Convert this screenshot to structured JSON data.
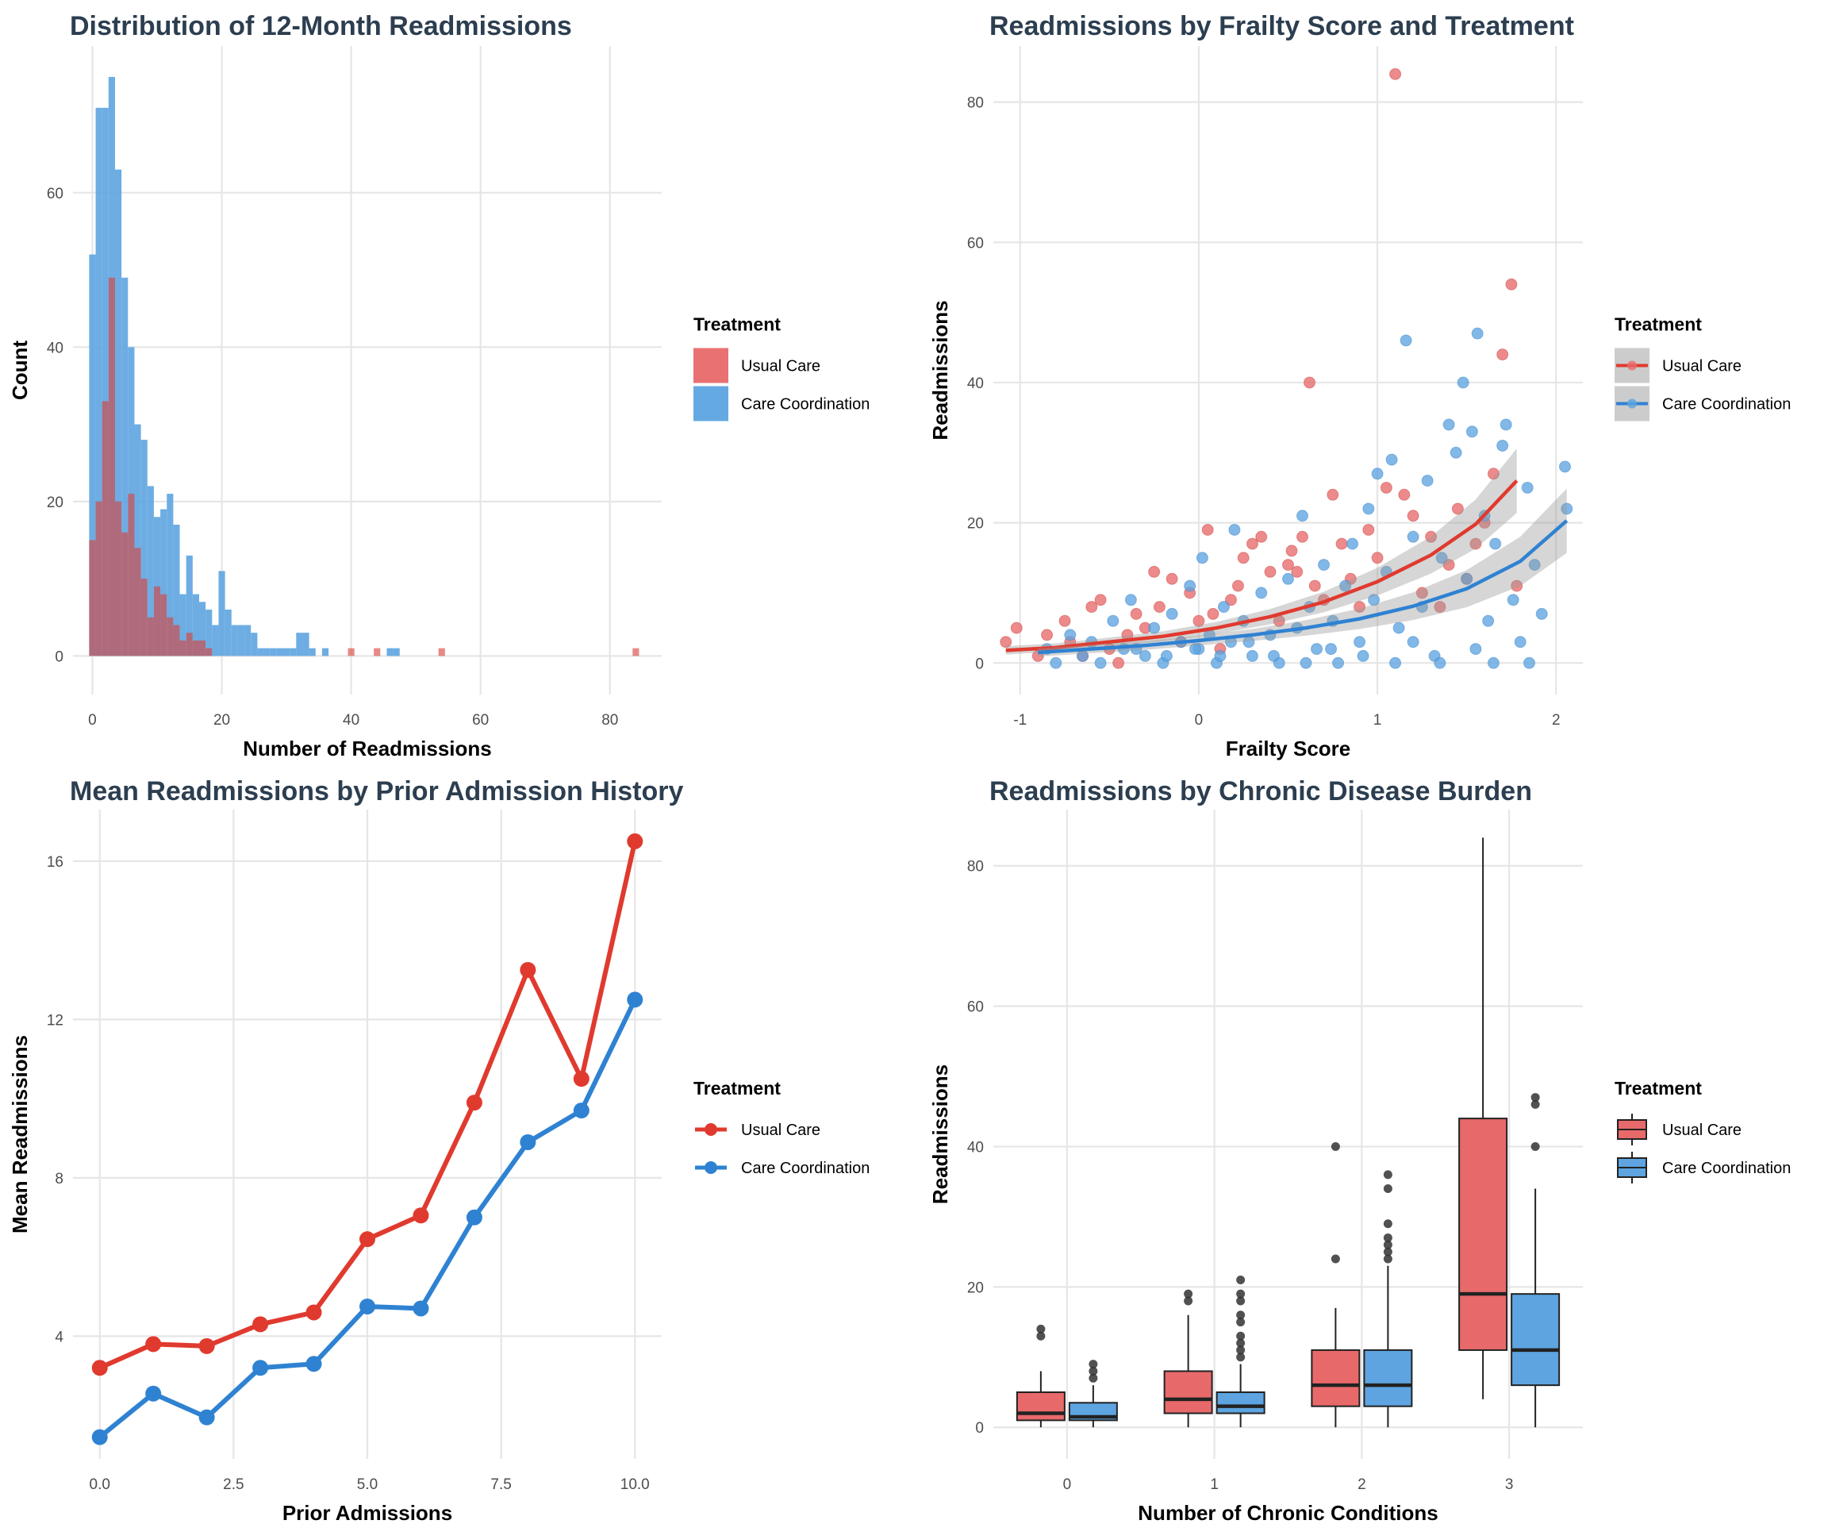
{
  "colors": {
    "usual": "#e03a2f",
    "usual_fill": "#e8696a",
    "coord": "#2f82d2",
    "coord_fill": "#5da4e0"
  },
  "chart_data": [
    {
      "type": "histogram",
      "title": "Distribution of 12-Month Readmissions",
      "xlabel": "Number of Readmissions",
      "ylabel": "Count",
      "xlim": [
        -3,
        88
      ],
      "ylim": [
        -5,
        79
      ],
      "xticks": [
        0,
        20,
        40,
        60,
        80
      ],
      "yticks": [
        0,
        20,
        40,
        60
      ],
      "bin_width": 1,
      "grid": true,
      "legend": {
        "title": "Treatment",
        "position": "right",
        "entries": [
          "Usual Care",
          "Care Coordination"
        ]
      },
      "series": [
        {
          "name": "Care Coordination",
          "bins": [
            0,
            1,
            2,
            3,
            4,
            5,
            6,
            7,
            8,
            9,
            10,
            11,
            12,
            13,
            14,
            15,
            16,
            17,
            18,
            19,
            20,
            21,
            22,
            23,
            24,
            25,
            26,
            27,
            28,
            29,
            30,
            31,
            32,
            33,
            34,
            35,
            36,
            37,
            38,
            39,
            40,
            41,
            42,
            43,
            44,
            45,
            46,
            47
          ],
          "counts": [
            52,
            71,
            71,
            75,
            63,
            49,
            40,
            30,
            28,
            22,
            18,
            19,
            21,
            17,
            8,
            13,
            8,
            7,
            6,
            4,
            11,
            6,
            4,
            4,
            4,
            3,
            1,
            1,
            1,
            1,
            1,
            1,
            3,
            3,
            1,
            0,
            1,
            0,
            0,
            0,
            0,
            0,
            0,
            0,
            0,
            0,
            1,
            1
          ]
        },
        {
          "name": "Usual Care",
          "bins": [
            0,
            1,
            2,
            3,
            4,
            5,
            6,
            7,
            8,
            9,
            10,
            11,
            12,
            13,
            14,
            15,
            16,
            17,
            18,
            19,
            40,
            44,
            54,
            84
          ],
          "counts": [
            15,
            20,
            33,
            49,
            20,
            16,
            21,
            14,
            10,
            5,
            9,
            8,
            5,
            4,
            2,
            3,
            2,
            2,
            1,
            0,
            1,
            1,
            1,
            1
          ]
        }
      ]
    },
    {
      "type": "scatter",
      "title": "Readmissions by Frailty Score and Treatment",
      "xlabel": "Frailty Score",
      "ylabel": "Readmissions",
      "xlim": [
        -1.15,
        2.15
      ],
      "ylim": [
        -4.5,
        88
      ],
      "xticks": [
        -1,
        0,
        1,
        2
      ],
      "yticks": [
        0,
        20,
        40,
        60,
        80
      ],
      "grid": true,
      "legend": {
        "title": "Treatment",
        "position": "right",
        "entries": [
          "Usual Care",
          "Care Coordination"
        ]
      },
      "series": [
        {
          "name": "Usual Care",
          "points": [
            [
              -1.08,
              3
            ],
            [
              -1.02,
              5
            ],
            [
              -0.9,
              1
            ],
            [
              -0.85,
              4
            ],
            [
              -0.75,
              6
            ],
            [
              -0.72,
              3
            ],
            [
              -0.65,
              1
            ],
            [
              -0.6,
              8
            ],
            [
              -0.55,
              9
            ],
            [
              -0.5,
              2
            ],
            [
              -0.45,
              0
            ],
            [
              -0.4,
              4
            ],
            [
              -0.35,
              7
            ],
            [
              -0.3,
              5
            ],
            [
              -0.25,
              13
            ],
            [
              -0.22,
              8
            ],
            [
              -0.15,
              12
            ],
            [
              -0.1,
              3
            ],
            [
              -0.05,
              10
            ],
            [
              0.0,
              6
            ],
            [
              0.05,
              19
            ],
            [
              0.08,
              7
            ],
            [
              0.12,
              2
            ],
            [
              0.18,
              9
            ],
            [
              0.22,
              11
            ],
            [
              0.25,
              15
            ],
            [
              0.3,
              17
            ],
            [
              0.35,
              18
            ],
            [
              0.4,
              13
            ],
            [
              0.45,
              6
            ],
            [
              0.5,
              14
            ],
            [
              0.52,
              16
            ],
            [
              0.55,
              13
            ],
            [
              0.58,
              18
            ],
            [
              0.62,
              40
            ],
            [
              0.65,
              11
            ],
            [
              0.7,
              9
            ],
            [
              0.75,
              24
            ],
            [
              0.8,
              17
            ],
            [
              0.85,
              12
            ],
            [
              0.9,
              8
            ],
            [
              0.95,
              19
            ],
            [
              1.0,
              15
            ],
            [
              1.05,
              25
            ],
            [
              1.1,
              84
            ],
            [
              1.15,
              24
            ],
            [
              1.2,
              21
            ],
            [
              1.25,
              10
            ],
            [
              1.3,
              18
            ],
            [
              1.35,
              8
            ],
            [
              1.4,
              14
            ],
            [
              1.45,
              22
            ],
            [
              1.5,
              12
            ],
            [
              1.55,
              17
            ],
            [
              1.6,
              20
            ],
            [
              1.65,
              27
            ],
            [
              1.7,
              44
            ],
            [
              1.75,
              54
            ],
            [
              1.78,
              11
            ]
          ]
        },
        {
          "name": "Care Coordination",
          "points": [
            [
              -0.85,
              2
            ],
            [
              -0.8,
              0
            ],
            [
              -0.72,
              4
            ],
            [
              -0.65,
              1
            ],
            [
              -0.6,
              3
            ],
            [
              -0.55,
              0
            ],
            [
              -0.48,
              6
            ],
            [
              -0.42,
              2
            ],
            [
              -0.38,
              9
            ],
            [
              -0.3,
              1
            ],
            [
              -0.25,
              5
            ],
            [
              -0.2,
              0
            ],
            [
              -0.15,
              7
            ],
            [
              -0.1,
              3
            ],
            [
              -0.05,
              11
            ],
            [
              0.0,
              2
            ],
            [
              0.02,
              15
            ],
            [
              0.06,
              4
            ],
            [
              0.1,
              0
            ],
            [
              0.14,
              8
            ],
            [
              0.18,
              3
            ],
            [
              0.2,
              19
            ],
            [
              0.25,
              6
            ],
            [
              0.3,
              1
            ],
            [
              0.35,
              10
            ],
            [
              0.4,
              4
            ],
            [
              0.45,
              0
            ],
            [
              0.5,
              12
            ],
            [
              0.55,
              5
            ],
            [
              0.58,
              21
            ],
            [
              0.62,
              8
            ],
            [
              0.66,
              2
            ],
            [
              0.7,
              14
            ],
            [
              0.75,
              6
            ],
            [
              0.78,
              0
            ],
            [
              0.82,
              11
            ],
            [
              0.86,
              17
            ],
            [
              0.9,
              3
            ],
            [
              0.95,
              22
            ],
            [
              0.98,
              9
            ],
            [
              1.0,
              27
            ],
            [
              1.05,
              13
            ],
            [
              1.08,
              29
            ],
            [
              1.12,
              5
            ],
            [
              1.16,
              46
            ],
            [
              1.2,
              18
            ],
            [
              1.25,
              8
            ],
            [
              1.28,
              26
            ],
            [
              1.32,
              1
            ],
            [
              1.36,
              15
            ],
            [
              1.4,
              34
            ],
            [
              1.44,
              30
            ],
            [
              1.48,
              40
            ],
            [
              1.5,
              12
            ],
            [
              1.53,
              33
            ],
            [
              1.56,
              47
            ],
            [
              1.6,
              21
            ],
            [
              1.62,
              6
            ],
            [
              1.66,
              17
            ],
            [
              1.7,
              31
            ],
            [
              1.72,
              34
            ],
            [
              1.76,
              9
            ],
            [
              1.8,
              3
            ],
            [
              1.84,
              25
            ],
            [
              1.88,
              14
            ],
            [
              1.92,
              7
            ],
            [
              2.05,
              28
            ],
            [
              2.06,
              22
            ],
            [
              1.85,
              0
            ],
            [
              1.65,
              0
            ],
            [
              1.55,
              2
            ],
            [
              1.35,
              0
            ],
            [
              1.2,
              3
            ],
            [
              1.1,
              0
            ],
            [
              0.92,
              1
            ],
            [
              0.74,
              2
            ],
            [
              0.6,
              0
            ],
            [
              0.42,
              1
            ],
            [
              0.28,
              3
            ],
            [
              0.12,
              1
            ],
            [
              -0.02,
              2
            ],
            [
              -0.18,
              1
            ],
            [
              -0.35,
              2
            ]
          ]
        }
      ],
      "trend_lines": [
        {
          "name": "Usual Care",
          "x": [
            -1.08,
            -0.8,
            -0.5,
            -0.2,
            0.1,
            0.4,
            0.7,
            1.0,
            1.3,
            1.55,
            1.78
          ],
          "y": [
            1.8,
            2.2,
            3.0,
            3.8,
            5.0,
            6.6,
            8.7,
            11.6,
            15.4,
            19.8,
            26
          ]
        },
        {
          "name": "Care Coordination",
          "x": [
            -0.9,
            -0.6,
            -0.3,
            0.0,
            0.3,
            0.6,
            0.9,
            1.2,
            1.5,
            1.8,
            2.06
          ],
          "y": [
            1.5,
            2.0,
            2.5,
            3.2,
            4.0,
            5.0,
            6.3,
            8.1,
            10.6,
            14.5,
            20.3
          ]
        }
      ]
    },
    {
      "type": "line",
      "title": "Mean Readmissions by Prior Admission History",
      "xlabel": "Prior Admissions",
      "ylabel": "Mean Readmissions",
      "xlim": [
        -0.5,
        10.5
      ],
      "ylim": [
        0.9,
        17.3
      ],
      "xticks": [
        0.0,
        2.5,
        5.0,
        7.5,
        10.0
      ],
      "xtick_labels": [
        "0.0",
        "2.5",
        "5.0",
        "7.5",
        "10.0"
      ],
      "yticks": [
        4,
        8,
        12,
        16
      ],
      "grid": true,
      "legend": {
        "title": "Treatment",
        "position": "right",
        "entries": [
          "Usual Care",
          "Care Coordination"
        ]
      },
      "x": [
        0,
        1,
        2,
        3,
        4,
        5,
        6,
        7,
        8,
        9,
        10
      ],
      "series": [
        {
          "name": "Usual Care",
          "values": [
            3.2,
            3.8,
            3.75,
            4.3,
            4.6,
            6.45,
            7.05,
            9.9,
            13.25,
            10.5,
            16.5
          ]
        },
        {
          "name": "Care Coordination",
          "values": [
            1.45,
            2.55,
            1.95,
            3.2,
            3.3,
            4.75,
            4.7,
            7.0,
            8.9,
            9.7,
            12.5
          ]
        }
      ]
    },
    {
      "type": "box",
      "title": "Readmissions by Chronic Disease Burden",
      "xlabel": "Number of Chronic Conditions",
      "ylabel": "Readmissions",
      "categories": [
        "0",
        "1",
        "2",
        "3"
      ],
      "ylim": [
        -4.5,
        88
      ],
      "yticks": [
        0,
        20,
        40,
        60,
        80
      ],
      "grid": true,
      "legend": {
        "title": "Treatment",
        "position": "right",
        "entries": [
          "Usual Care",
          "Care Coordination"
        ]
      },
      "series": [
        {
          "name": "Usual Care",
          "boxes": [
            {
              "min": 0,
              "q1": 1,
              "median": 2,
              "q3": 5,
              "max": 8,
              "outliers": [
                13,
                14
              ]
            },
            {
              "min": 0,
              "q1": 2,
              "median": 4,
              "q3": 8,
              "max": 16,
              "outliers": [
                18,
                19
              ]
            },
            {
              "min": 0,
              "q1": 3,
              "median": 6,
              "q3": 11,
              "max": 17,
              "outliers": [
                24,
                40
              ]
            },
            {
              "min": 4,
              "q1": 11,
              "median": 19,
              "q3": 44,
              "max": 84,
              "outliers": []
            }
          ]
        },
        {
          "name": "Care Coordination",
          "boxes": [
            {
              "min": 0,
              "q1": 1,
              "median": 1.5,
              "q3": 3.5,
              "max": 6,
              "outliers": [
                7,
                8,
                9
              ]
            },
            {
              "min": 0,
              "q1": 2,
              "median": 3,
              "q3": 5,
              "max": 9,
              "outliers": [
                10,
                11,
                12,
                13,
                15,
                16,
                18,
                19,
                21
              ]
            },
            {
              "min": 0,
              "q1": 3,
              "median": 6,
              "q3": 11,
              "max": 23,
              "outliers": [
                24,
                25,
                26,
                27,
                29,
                34,
                36
              ]
            },
            {
              "min": 0,
              "q1": 6,
              "median": 11,
              "q3": 19,
              "max": 34,
              "outliers": [
                40,
                46,
                47
              ]
            }
          ]
        }
      ]
    }
  ]
}
